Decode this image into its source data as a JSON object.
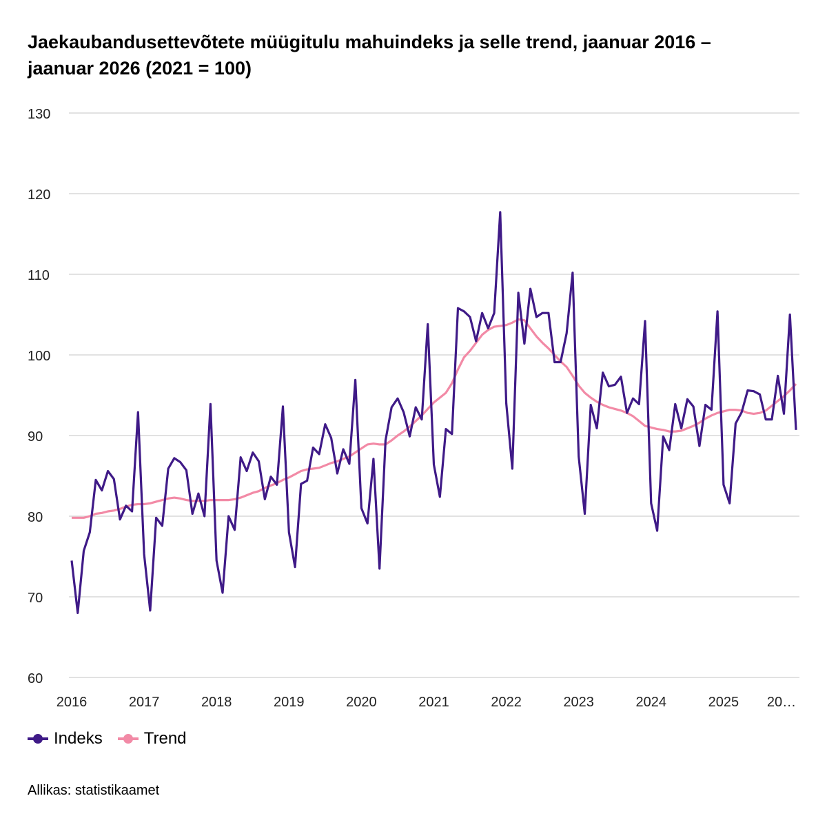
{
  "title_lines": [
    "Jaekaubandusettevõtete müügitulu mahuindeks ja selle trend, jaanuar 2016 –",
    "jaanuar 2026 (2021 = 100)"
  ],
  "source": "Allikas: statistikaamet",
  "chart_data": {
    "type": "line",
    "title": "Jaekaubandusettevõtete müügitulu mahuindeks ja selle trend, jaanuar 2016 – jaanuar 2026 (2021 = 100)",
    "x_start": "2016-01",
    "x_end": "2026-01",
    "frequency": "monthly",
    "x_tick_labels": [
      "2016",
      "2017",
      "2018",
      "2019",
      "2020",
      "2021",
      "2022",
      "2023",
      "2024",
      "2025",
      "20…"
    ],
    "y_tick_labels": [
      "60",
      "70",
      "80",
      "90",
      "100",
      "110",
      "120",
      "130"
    ],
    "ylim": [
      60,
      130
    ],
    "grid": true,
    "legend_position": "bottom-left",
    "series": [
      {
        "name": "Indeks",
        "color": "#3f1a87",
        "values": [
          74.5,
          68.0,
          75.7,
          78.0,
          84.5,
          83.2,
          85.6,
          84.6,
          79.6,
          81.3,
          80.6,
          92.9,
          75.3,
          68.3,
          79.8,
          78.8,
          85.9,
          87.2,
          86.7,
          85.7,
          80.3,
          82.8,
          80.0,
          93.9,
          74.5,
          70.5,
          80.0,
          78.3,
          87.3,
          85.6,
          87.9,
          86.8,
          82.1,
          84.9,
          83.9,
          93.6,
          78.0,
          73.7,
          84.0,
          84.4,
          88.5,
          87.7,
          91.4,
          89.7,
          85.3,
          88.3,
          86.5,
          96.9,
          81.0,
          79.1,
          87.1,
          73.5,
          89.4,
          93.5,
          94.6,
          92.9,
          89.9,
          93.5,
          92.0,
          103.8,
          86.4,
          82.4,
          90.8,
          90.2,
          105.8,
          105.4,
          104.7,
          101.7,
          105.2,
          103.3,
          105.2,
          117.7,
          94.0,
          85.9,
          107.7,
          101.4,
          108.2,
          104.7,
          105.2,
          105.2,
          99.1,
          99.1,
          102.7,
          110.2,
          87.4,
          80.3,
          93.8,
          90.9,
          97.8,
          96.1,
          96.3,
          97.3,
          92.8,
          94.6,
          93.9,
          104.2,
          81.6,
          78.2,
          89.9,
          88.2,
          93.9,
          90.9,
          94.5,
          93.6,
          88.7,
          93.8,
          93.2,
          105.4,
          83.9,
          81.6,
          91.5,
          92.9,
          95.6,
          95.5,
          95.1,
          92.0,
          92.0,
          97.4,
          92.7,
          105.0,
          90.7
        ]
      },
      {
        "name": "Trend",
        "color": "#f28aa6",
        "values": [
          79.8,
          79.8,
          79.8,
          80.0,
          80.3,
          80.4,
          80.6,
          80.7,
          80.9,
          81.2,
          81.4,
          81.5,
          81.5,
          81.6,
          81.8,
          82.0,
          82.2,
          82.3,
          82.2,
          82.0,
          81.9,
          81.9,
          81.9,
          82.0,
          82.0,
          82.0,
          82.0,
          82.1,
          82.3,
          82.6,
          82.9,
          83.1,
          83.5,
          83.8,
          84.1,
          84.5,
          84.8,
          85.2,
          85.6,
          85.8,
          85.9,
          86.0,
          86.3,
          86.6,
          86.8,
          87.1,
          87.4,
          87.9,
          88.4,
          88.9,
          89.0,
          88.9,
          88.9,
          89.4,
          90.0,
          90.5,
          91.1,
          91.8,
          92.5,
          93.3,
          94.1,
          94.7,
          95.3,
          96.5,
          98.2,
          99.7,
          100.5,
          101.5,
          102.5,
          103.1,
          103.5,
          103.6,
          103.7,
          104.0,
          104.4,
          104.3,
          103.3,
          102.3,
          101.5,
          100.8,
          100.0,
          99.2,
          98.5,
          97.4,
          96.2,
          95.3,
          94.7,
          94.2,
          93.8,
          93.5,
          93.3,
          93.1,
          92.8,
          92.4,
          91.8,
          91.2,
          91.0,
          90.8,
          90.7,
          90.5,
          90.5,
          90.6,
          90.9,
          91.2,
          91.6,
          92.1,
          92.5,
          92.8,
          93.0,
          93.2,
          93.2,
          93.1,
          92.8,
          92.7,
          92.8,
          93.1,
          93.7,
          94.3,
          94.9,
          95.6,
          96.4
        ]
      }
    ]
  }
}
